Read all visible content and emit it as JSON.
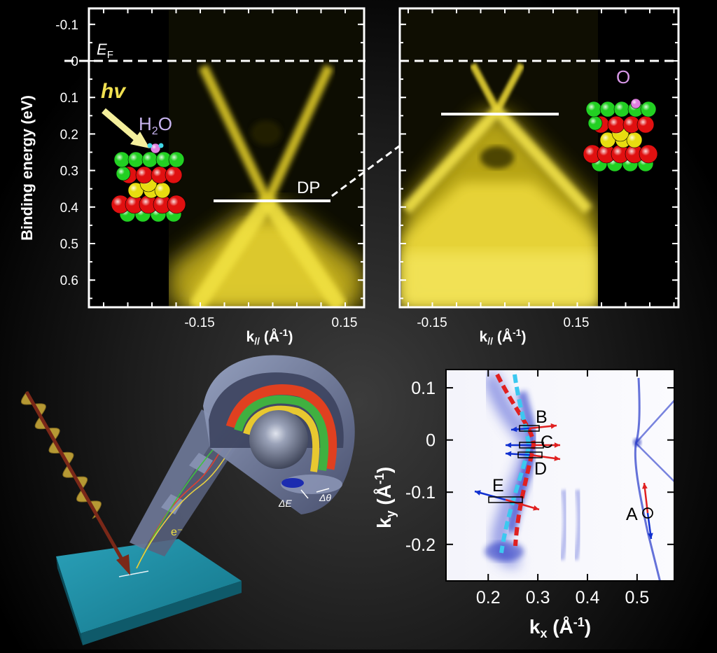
{
  "top_panels": {
    "y_axis_label": "Binding energy (eV)",
    "y_ticks": [
      "-0.1",
      "0",
      "0.1",
      "0.2",
      "0.3",
      "0.4",
      "0.5",
      "0.6"
    ],
    "x_tick_left": "-0.15",
    "x_tick_right": "0.15",
    "x_axis_label": "k// (Å⁻¹)",
    "fermi_label_main": "E",
    "fermi_label_sub": "F",
    "left_panel": {
      "photon_label": "hv",
      "molecule_label_h": "H",
      "molecule_label_sub": "2",
      "molecule_label_o": "O",
      "dp_label": "DP",
      "dirac_point_ev": 0.38
    },
    "right_panel": {
      "adsorbate_label": "O",
      "dirac_point_ev": 0.15
    }
  },
  "schematic": {
    "electron_label": "e⁻",
    "delta_e_label": "ΔE",
    "delta_theta_label": "Δθ"
  },
  "kmap": {
    "y_ticks": [
      "0.1",
      "0",
      "-0.1",
      "-0.2"
    ],
    "x_ticks": [
      "0.2",
      "0.3",
      "0.4",
      "0.5"
    ],
    "y_axis_label_main": "k",
    "y_axis_label_sub": "y",
    "y_axis_label_unit": "(Å⁻¹)",
    "x_axis_label_main": "k",
    "x_axis_label_sub": "x",
    "x_axis_label_unit": "(Å⁻¹)",
    "points": {
      "A": "A",
      "B": "B",
      "C": "C",
      "D": "D",
      "E": "E"
    }
  },
  "colors": {
    "band_yellow": "#f5e43a",
    "spin_red": "#e02020",
    "spin_blue": "#1030d0",
    "dash_cyan": "#3cc8f0"
  }
}
